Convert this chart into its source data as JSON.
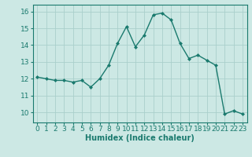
{
  "x": [
    0,
    1,
    2,
    3,
    4,
    5,
    6,
    7,
    8,
    9,
    10,
    11,
    12,
    13,
    14,
    15,
    16,
    17,
    18,
    19,
    20,
    21,
    22,
    23
  ],
  "y": [
    12.1,
    12.0,
    11.9,
    11.9,
    11.8,
    11.9,
    11.5,
    12.0,
    12.8,
    14.1,
    15.1,
    13.9,
    14.6,
    15.8,
    15.9,
    15.5,
    14.1,
    13.2,
    13.4,
    13.1,
    12.8,
    9.9,
    10.1,
    9.9
  ],
  "line_color": "#1a7a6e",
  "marker": "D",
  "marker_size": 2.0,
  "bg_color": "#cce8e4",
  "grid_color": "#aacfcb",
  "xlabel": "Humidex (Indice chaleur)",
  "ylim": [
    9.4,
    16.4
  ],
  "xlim": [
    -0.5,
    23.5
  ],
  "yticks": [
    10,
    11,
    12,
    13,
    14,
    15,
    16
  ],
  "xticks": [
    0,
    1,
    2,
    3,
    4,
    5,
    6,
    7,
    8,
    9,
    10,
    11,
    12,
    13,
    14,
    15,
    16,
    17,
    18,
    19,
    20,
    21,
    22,
    23
  ],
  "tick_color": "#1a7a6e",
  "label_color": "#1a7a6e",
  "font_size": 6.5,
  "xlabel_font_size": 7.0,
  "linewidth": 1.0
}
